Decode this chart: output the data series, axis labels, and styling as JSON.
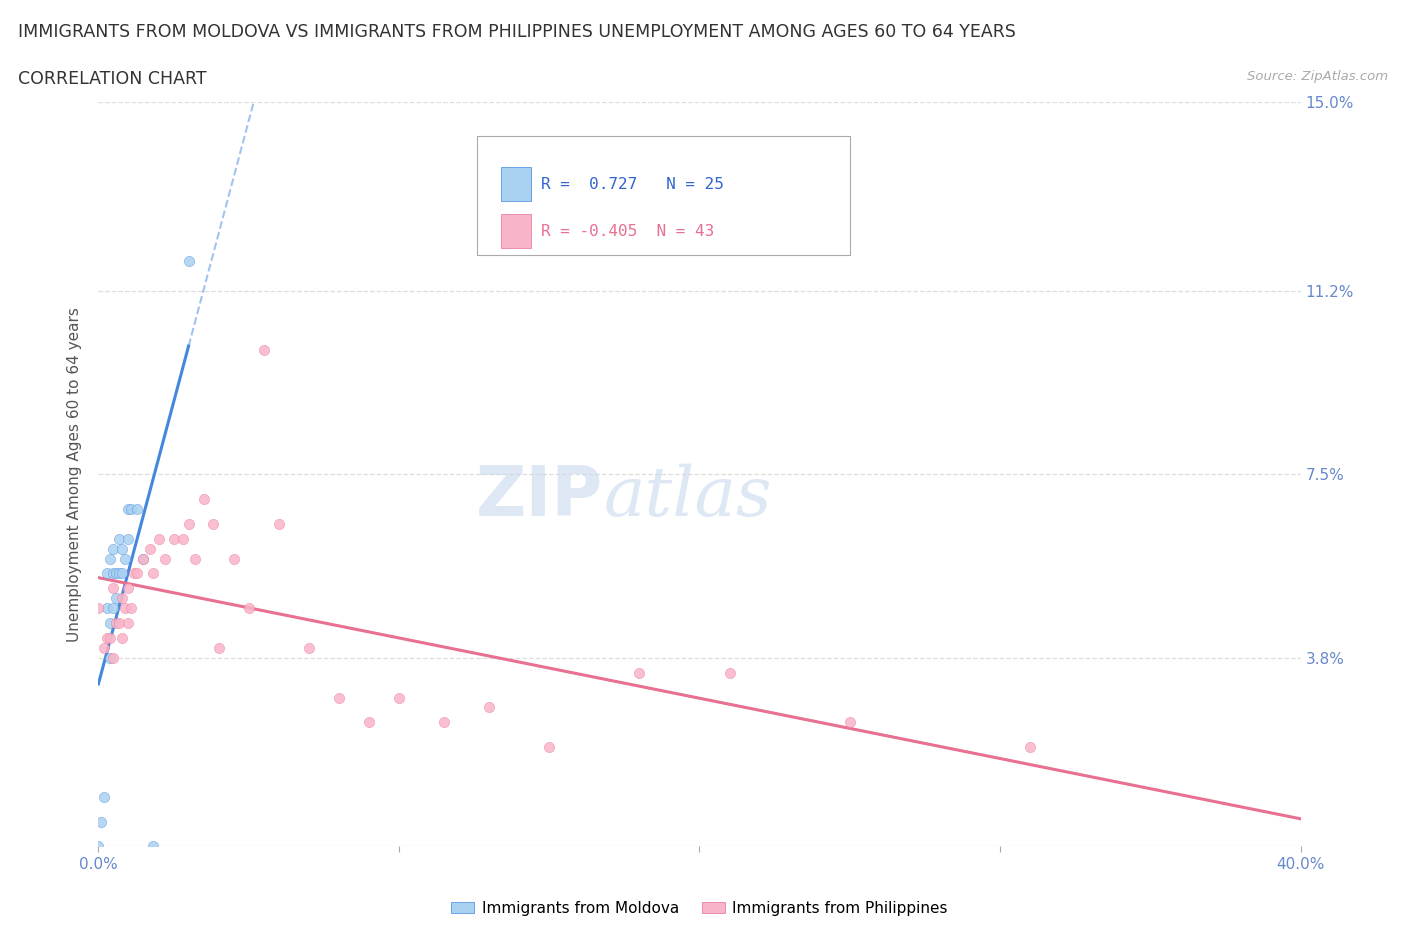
{
  "title_line1": "IMMIGRANTS FROM MOLDOVA VS IMMIGRANTS FROM PHILIPPINES UNEMPLOYMENT AMONG AGES 60 TO 64 YEARS",
  "title_line2": "CORRELATION CHART",
  "source_text": "Source: ZipAtlas.com",
  "ylabel": "Unemployment Among Ages 60 to 64 years",
  "xlim": [
    0.0,
    0.4
  ],
  "ylim": [
    0.0,
    0.15
  ],
  "ytick_vals": [
    0.0,
    0.038,
    0.075,
    0.112,
    0.15
  ],
  "ytick_labels": [
    "",
    "3.8%",
    "7.5%",
    "11.2%",
    "15.0%"
  ],
  "xtick_vals": [
    0.0,
    0.1,
    0.2,
    0.3,
    0.4
  ],
  "xtick_labels": [
    "0.0%",
    "",
    "",
    "",
    "40.0%"
  ],
  "moldova_color": "#a8d0f0",
  "philippines_color": "#f8b4c8",
  "moldova_line_color": "#4488dd",
  "philippines_line_color": "#e87090",
  "moldova_R": "0.727",
  "moldova_N": "25",
  "philippines_R": "-0.405",
  "philippines_N": "43",
  "legend_moldova": "Immigrants from Moldova",
  "legend_philippines": "Immigrants from Philippines",
  "moldova_x": [
    0.0,
    0.001,
    0.002,
    0.003,
    0.003,
    0.004,
    0.004,
    0.004,
    0.005,
    0.005,
    0.005,
    0.006,
    0.006,
    0.007,
    0.007,
    0.008,
    0.008,
    0.009,
    0.01,
    0.01,
    0.011,
    0.013,
    0.015,
    0.018,
    0.03
  ],
  "moldova_y": [
    0.0,
    0.005,
    0.01,
    0.048,
    0.055,
    0.038,
    0.045,
    0.058,
    0.048,
    0.055,
    0.06,
    0.05,
    0.055,
    0.055,
    0.062,
    0.055,
    0.06,
    0.058,
    0.062,
    0.068,
    0.068,
    0.068,
    0.058,
    0.0,
    0.118
  ],
  "philippines_x": [
    0.0,
    0.002,
    0.003,
    0.004,
    0.005,
    0.005,
    0.006,
    0.007,
    0.008,
    0.008,
    0.009,
    0.01,
    0.01,
    0.011,
    0.012,
    0.013,
    0.015,
    0.017,
    0.018,
    0.02,
    0.022,
    0.025,
    0.028,
    0.03,
    0.032,
    0.035,
    0.038,
    0.04,
    0.045,
    0.05,
    0.055,
    0.06,
    0.07,
    0.08,
    0.09,
    0.1,
    0.115,
    0.13,
    0.15,
    0.18,
    0.21,
    0.25,
    0.31
  ],
  "philippines_y": [
    0.048,
    0.04,
    0.042,
    0.042,
    0.038,
    0.052,
    0.045,
    0.045,
    0.042,
    0.05,
    0.048,
    0.045,
    0.052,
    0.048,
    0.055,
    0.055,
    0.058,
    0.06,
    0.055,
    0.062,
    0.058,
    0.062,
    0.062,
    0.065,
    0.058,
    0.07,
    0.065,
    0.04,
    0.058,
    0.048,
    0.1,
    0.065,
    0.04,
    0.03,
    0.025,
    0.03,
    0.025,
    0.028,
    0.02,
    0.035,
    0.035,
    0.025,
    0.02
  ]
}
